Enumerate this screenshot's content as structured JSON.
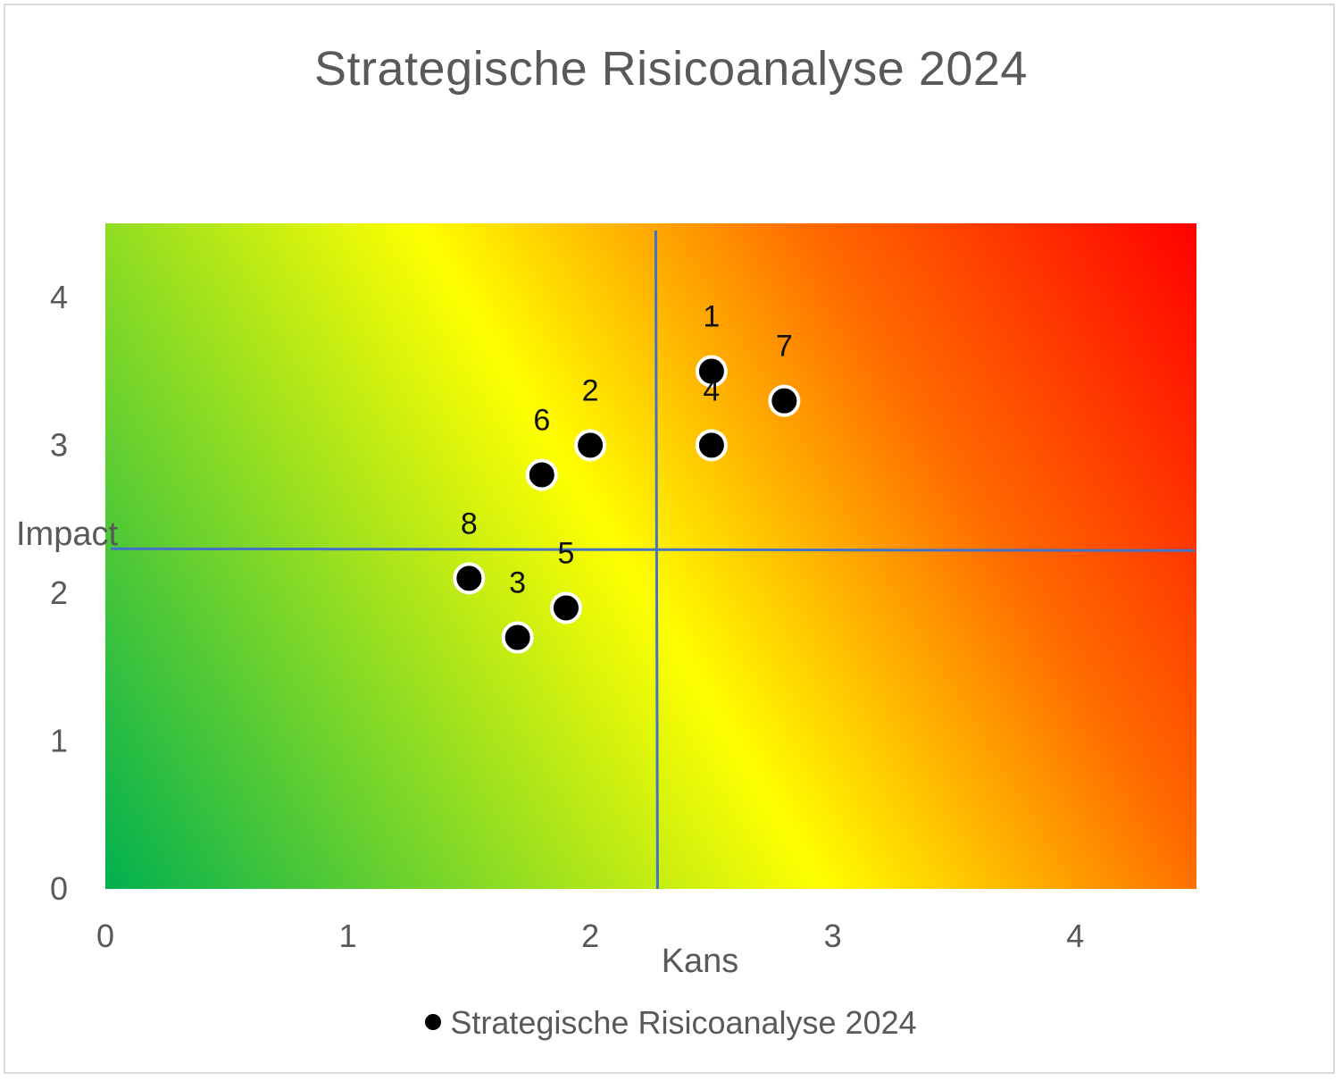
{
  "chart_data": {
    "type": "scatter",
    "title": "Strategische Risicoanalyse 2024",
    "xlabel": "Kans",
    "ylabel": "Impact",
    "xlim": [
      0,
      4.5
    ],
    "ylim": [
      0,
      4.5
    ],
    "xticks": [
      0,
      1,
      2,
      3,
      4
    ],
    "yticks": [
      0,
      1,
      2,
      3,
      4
    ],
    "tick_labels_x": [
      "0",
      "1",
      "2",
      "3",
      "4"
    ],
    "tick_labels_y": [
      "0",
      "1",
      "2",
      "3",
      "4"
    ],
    "grid": false,
    "background": "diagonal gradient green (low) - yellow - orange - red (high)",
    "reference_lines": {
      "x": 2.27,
      "y": 2.3
    },
    "legend_position": "bottom",
    "series": [
      {
        "name": "Strategische Risicoanalyse 2024",
        "points": [
          {
            "label": "1",
            "x": 2.5,
            "y": 3.5
          },
          {
            "label": "2",
            "x": 2.0,
            "y": 3.0
          },
          {
            "label": "3",
            "x": 1.7,
            "y": 1.7
          },
          {
            "label": "4",
            "x": 2.5,
            "y": 3.0
          },
          {
            "label": "5",
            "x": 1.9,
            "y": 1.9
          },
          {
            "label": "6",
            "x": 1.8,
            "y": 2.8
          },
          {
            "label": "7",
            "x": 2.8,
            "y": 3.3
          },
          {
            "label": "8",
            "x": 1.5,
            "y": 2.1
          }
        ]
      }
    ]
  },
  "colors": {
    "gradient_low": "#00b050",
    "gradient_mid": "#ffff00",
    "gradient_high_mid": "#ff6600",
    "gradient_high": "#ff0000",
    "reference_line": "#4472c4",
    "marker_fill": "#000000",
    "marker_stroke": "#ffffff",
    "text": "#595959"
  }
}
